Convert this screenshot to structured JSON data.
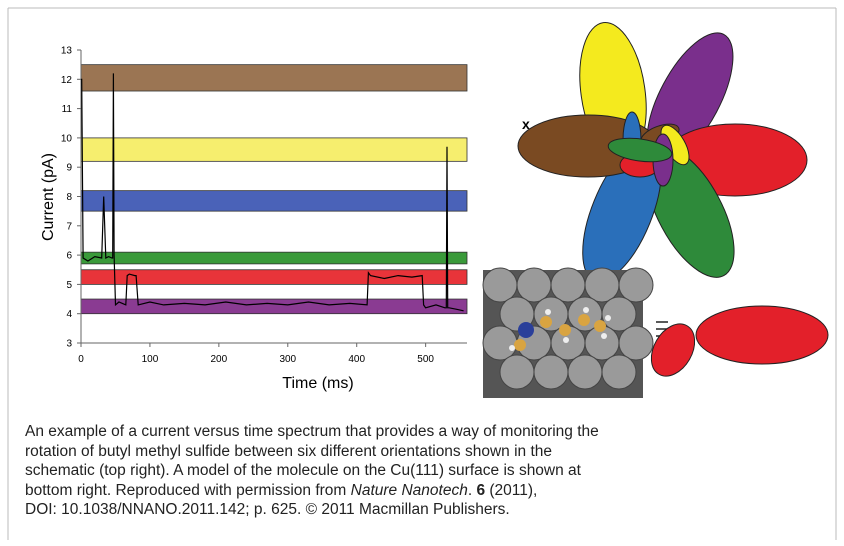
{
  "chart_data": {
    "type": "line",
    "x_label": "Time (ms)",
    "y_label": "Current (pA)",
    "xlim": [
      0,
      560
    ],
    "xticks": [
      0,
      100,
      200,
      300,
      400,
      500
    ],
    "ylim": [
      3,
      13
    ],
    "yticks": [
      3,
      4,
      5,
      6,
      7,
      8,
      9,
      10,
      11,
      12,
      13
    ],
    "bands": [
      {
        "color": "#9b7553",
        "range": [
          11.6,
          12.5
        ]
      },
      {
        "color": "#f6ee6e",
        "range": [
          9.2,
          10.0
        ]
      },
      {
        "color": "#4a62b8",
        "range": [
          7.5,
          8.2
        ]
      },
      {
        "color": "#3a9a3a",
        "range": [
          5.7,
          6.1
        ]
      },
      {
        "color": "#e8343a",
        "range": [
          5.0,
          5.5
        ]
      },
      {
        "color": "#8a3b92",
        "range": [
          4.0,
          4.5
        ]
      }
    ],
    "x": [
      0,
      1,
      3,
      10,
      20,
      30,
      33,
      36,
      40,
      45,
      46,
      47,
      48,
      50,
      55,
      60,
      65,
      67,
      70,
      78,
      80,
      83,
      100,
      120,
      150,
      180,
      210,
      240,
      270,
      300,
      330,
      360,
      390,
      415,
      417,
      420,
      440,
      460,
      480,
      495,
      497,
      500,
      515,
      528,
      530,
      531,
      532,
      534,
      545,
      555
    ],
    "series": [
      {
        "color": "#000000",
        "values": [
          12,
          12,
          5.9,
          5.8,
          5.95,
          5.9,
          8,
          5.9,
          5.95,
          5.9,
          5.9,
          12.2,
          6,
          4.3,
          4.4,
          4.35,
          4.3,
          5.3,
          5.35,
          5.3,
          5.3,
          4.3,
          4.4,
          4.3,
          4.35,
          4.3,
          4.4,
          4.3,
          4.35,
          4.3,
          4.4,
          4.3,
          4.35,
          4.3,
          5.4,
          5.3,
          5.2,
          5.3,
          5.25,
          5.3,
          4.3,
          4.2,
          4.3,
          4.2,
          4.2,
          9.7,
          4.2,
          4.2,
          4.15,
          4.1
        ]
      }
    ]
  },
  "schematic_label": "x",
  "caption": [
    [
      {
        "text": "An example of a current versus time spectrum that provides a way of monitoring the"
      }
    ],
    [
      {
        "text": "rotation of butyl methyl sulfide between six different orientations shown in the"
      }
    ],
    [
      {
        "text": "schematic (top right). A model of the molecule on the Cu(111) surface is shown at"
      }
    ],
    [
      {
        "text": "bottom right. Reproduced with permission from "
      },
      {
        "text": "Nature Nanotech",
        "style": "italic"
      },
      {
        "text": ". "
      },
      {
        "text": "6",
        "style": "bold"
      },
      {
        "text": " (2011),"
      }
    ],
    [
      {
        "text": "DOI: 10.1038/NNANO.2011.142; p. 625. © 2011 Macmillan Publishers."
      }
    ]
  ]
}
